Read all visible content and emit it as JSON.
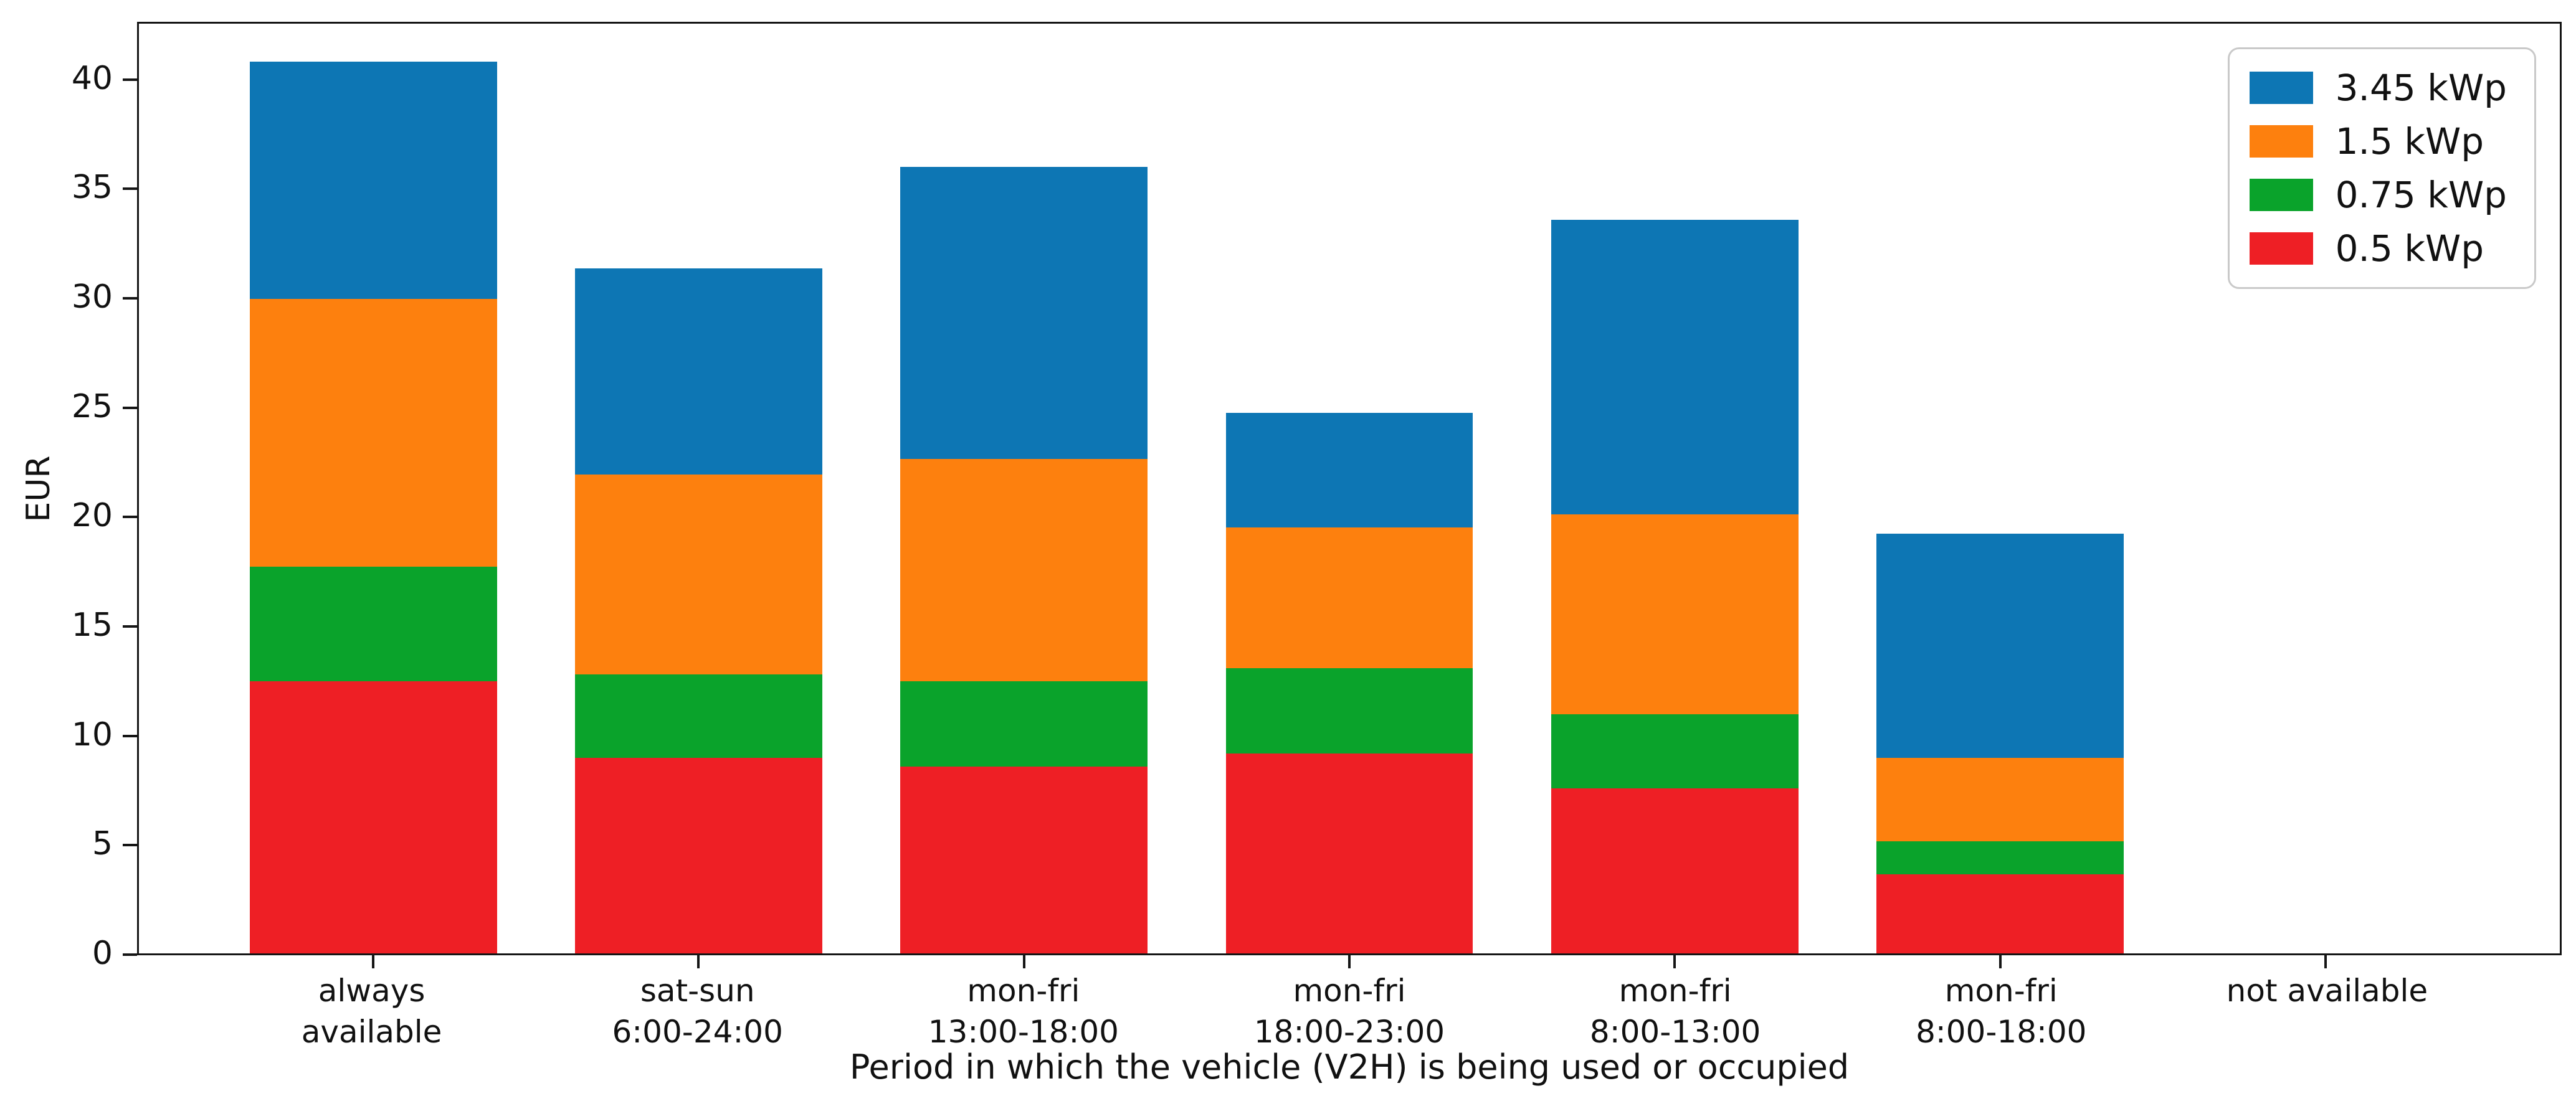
{
  "chart_data": {
    "type": "bar",
    "stacked": true,
    "title": "",
    "xlabel": "Period in which the vehicle (V2H) is being used or occupied",
    "ylabel": "EUR",
    "ylim": [
      0,
      42.5
    ],
    "yticks": [
      0,
      5,
      10,
      15,
      20,
      25,
      30,
      35,
      40
    ],
    "grid": false,
    "categories": [
      [
        "always",
        "available"
      ],
      [
        "sat-sun",
        "6:00-24:00"
      ],
      [
        "mon-fri",
        "13:00-18:00"
      ],
      [
        "mon-fri",
        "18:00-23:00"
      ],
      [
        "mon-fri",
        "8:00-13:00"
      ],
      [
        "mon-fri",
        "8:00-18:00"
      ],
      [
        "not available"
      ]
    ],
    "series": [
      {
        "name": "0.5 kWp",
        "color": "#ee1f25",
        "values": [
          12.4,
          8.9,
          8.5,
          9.1,
          7.5,
          3.6,
          0
        ]
      },
      {
        "name": "0.75 kWp",
        "color": "#0aa32b",
        "values": [
          5.2,
          3.8,
          3.9,
          3.9,
          3.4,
          1.5,
          0
        ]
      },
      {
        "name": "1.5 kWp",
        "color": "#fd800e",
        "values": [
          12.2,
          9.1,
          10.1,
          6.4,
          9.1,
          3.8,
          0
        ]
      },
      {
        "name": "3.45 kWp",
        "color": "#0d76b4",
        "values": [
          10.8,
          9.4,
          13.3,
          5.2,
          13.4,
          10.2,
          0
        ]
      }
    ],
    "stack_totals": [
      40.6,
      31.2,
      35.8,
      24.6,
      33.4,
      19.1,
      0
    ],
    "legend": {
      "position": "upper right",
      "entries": [
        "3.45 kWp",
        "1.5 kWp",
        "0.75 kWp",
        "0.5 kWp"
      ]
    }
  }
}
